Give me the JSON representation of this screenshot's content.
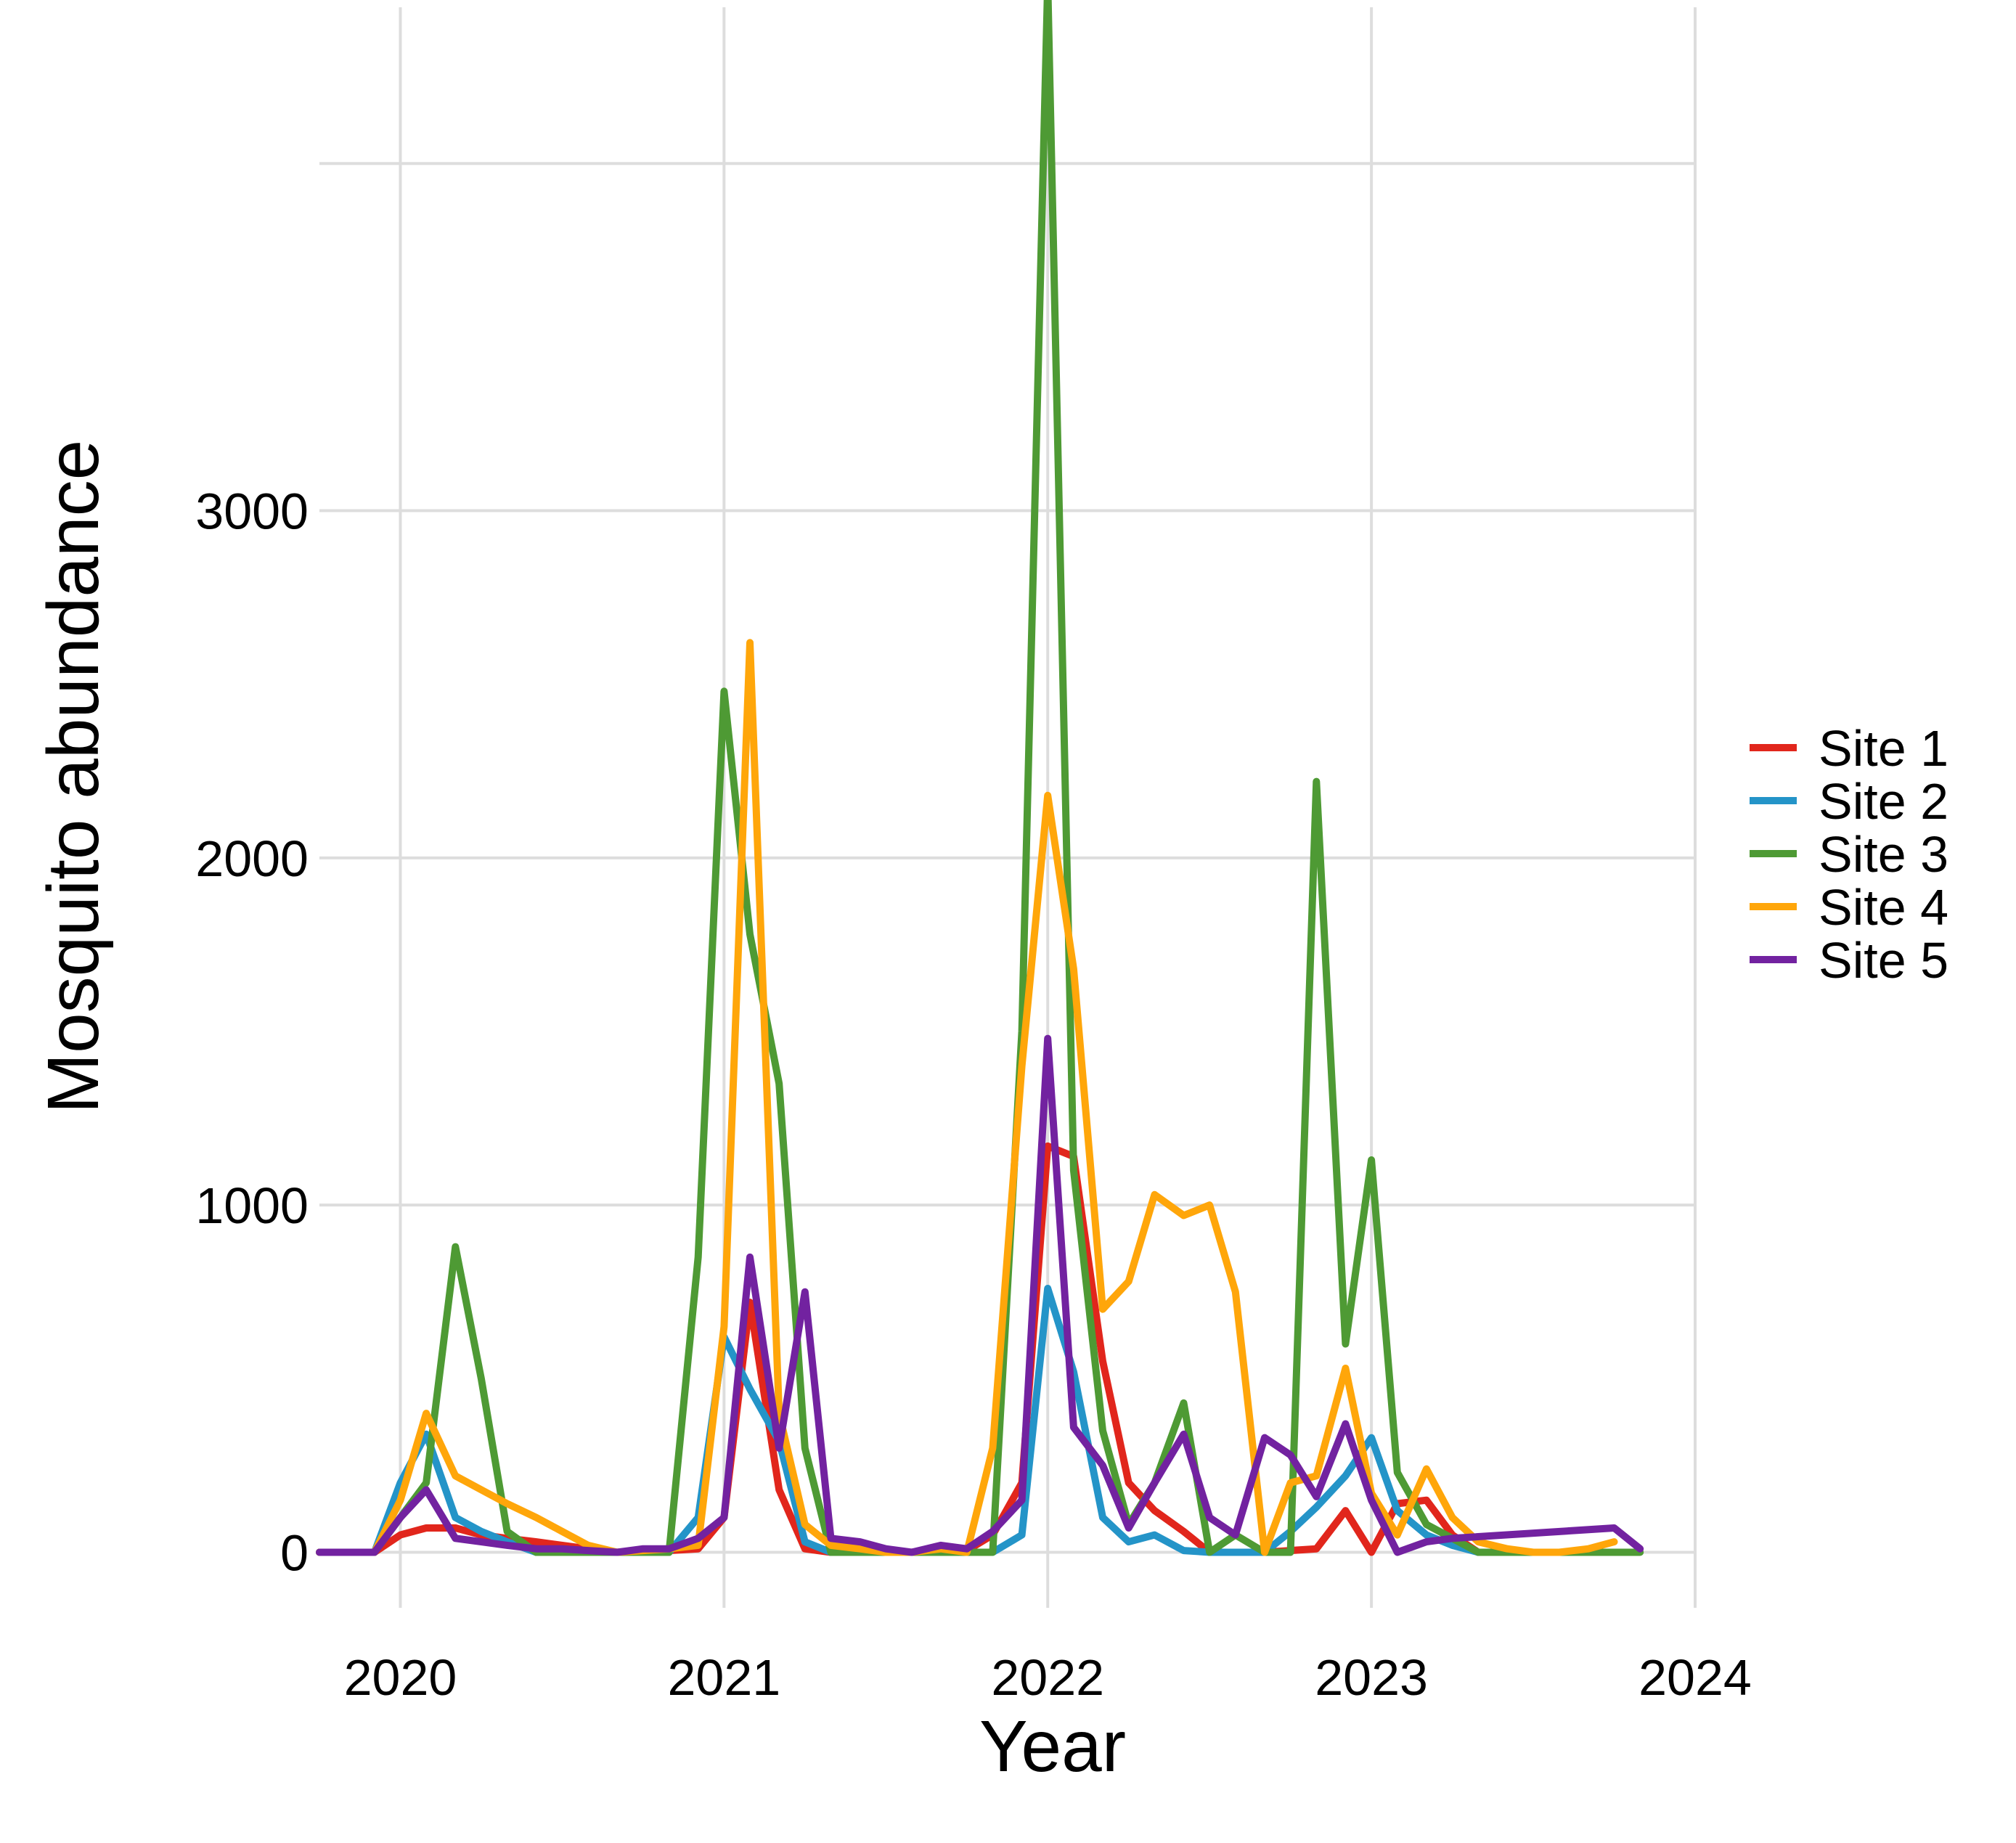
{
  "chart_data": {
    "type": "line",
    "title": "",
    "xlabel": "Year",
    "ylabel": "Mosquito abundance",
    "xlim": [
      2019.75,
      2024.0
    ],
    "ylim": [
      -160,
      4450
    ],
    "xticks": [
      2020,
      2021,
      2022,
      2023,
      2024
    ],
    "xtick_labels": [
      "2020",
      "2021",
      "2022",
      "2023",
      "2024"
    ],
    "yticks": [
      0,
      1000,
      2000,
      3000
    ],
    "ytick_labels": [
      "0",
      "1000",
      "2000",
      "3000"
    ],
    "extra_gridlines_y": [
      4000
    ],
    "grid": true,
    "legend_position": "right",
    "series": [
      {
        "name": "Site 1",
        "color": "#e1261c",
        "x": [
          2019.75,
          2019.83,
          2019.92,
          2020.0,
          2020.08,
          2020.17,
          2020.25,
          2020.33,
          2020.42,
          2020.5,
          2020.58,
          2020.67,
          2020.75,
          2020.83,
          2020.92,
          2021.0,
          2021.08,
          2021.17,
          2021.25,
          2021.33,
          2021.42,
          2021.5,
          2021.58,
          2021.67,
          2021.75,
          2021.83,
          2021.92,
          2022.0,
          2022.08,
          2022.17,
          2022.25,
          2022.33,
          2022.42,
          2022.5,
          2022.58,
          2022.67,
          2022.75,
          2022.83,
          2022.92,
          2023.0,
          2023.08,
          2023.17,
          2023.25,
          2023.33
        ],
        "y": [
          0,
          0,
          0,
          50,
          70,
          70,
          50,
          40,
          30,
          20,
          10,
          0,
          5,
          5,
          10,
          100,
          720,
          180,
          10,
          0,
          0,
          0,
          0,
          10,
          5,
          50,
          200,
          1170,
          1140,
          550,
          200,
          120,
          60,
          0,
          0,
          0,
          5,
          10,
          120,
          0,
          140,
          150,
          50,
          0
        ]
      },
      {
        "name": "Site 2",
        "color": "#2494c8",
        "x": [
          2019.75,
          2019.83,
          2019.92,
          2020.0,
          2020.08,
          2020.17,
          2020.25,
          2020.33,
          2020.42,
          2020.5,
          2020.58,
          2020.67,
          2020.75,
          2020.83,
          2020.92,
          2021.0,
          2021.08,
          2021.17,
          2021.25,
          2021.33,
          2021.42,
          2021.5,
          2021.58,
          2021.67,
          2021.75,
          2021.83,
          2021.92,
          2022.0,
          2022.08,
          2022.17,
          2022.25,
          2022.33,
          2022.42,
          2022.5,
          2022.58,
          2022.67,
          2022.75,
          2022.83,
          2022.92,
          2023.0,
          2023.08,
          2023.17,
          2023.25,
          2023.33
        ],
        "y": [
          0,
          0,
          0,
          200,
          340,
          100,
          60,
          30,
          0,
          0,
          0,
          0,
          0,
          0,
          100,
          620,
          470,
          320,
          30,
          0,
          0,
          0,
          0,
          0,
          0,
          0,
          50,
          760,
          520,
          100,
          30,
          50,
          5,
          0,
          0,
          0,
          60,
          130,
          220,
          330,
          120,
          50,
          20,
          0
        ]
      },
      {
        "name": "Site 3",
        "color": "#4e9a34",
        "x": [
          2019.75,
          2019.83,
          2019.92,
          2020.0,
          2020.08,
          2020.17,
          2020.25,
          2020.33,
          2020.42,
          2020.5,
          2020.58,
          2020.67,
          2020.75,
          2020.83,
          2020.92,
          2021.0,
          2021.08,
          2021.17,
          2021.25,
          2021.33,
          2021.42,
          2021.5,
          2021.58,
          2021.67,
          2021.75,
          2021.83,
          2021.92,
          2022.0,
          2022.08,
          2022.17,
          2022.25,
          2022.33,
          2022.42,
          2022.5,
          2022.58,
          2022.67,
          2022.75,
          2022.83,
          2022.92,
          2023.0,
          2023.08,
          2023.17,
          2023.25,
          2023.33,
          2023.42,
          2023.5,
          2023.58,
          2023.67,
          2023.75,
          2023.83
        ],
        "y": [
          0,
          0,
          0,
          100,
          200,
          880,
          500,
          60,
          0,
          0,
          0,
          0,
          0,
          0,
          850,
          2480,
          1780,
          1350,
          300,
          0,
          0,
          0,
          0,
          0,
          0,
          0,
          1500,
          4520,
          1100,
          350,
          80,
          200,
          430,
          0,
          50,
          0,
          0,
          2220,
          600,
          1130,
          230,
          80,
          40,
          0,
          0,
          0,
          0,
          0,
          0,
          0
        ]
      },
      {
        "name": "Site 4",
        "color": "#ffa60a",
        "x": [
          2019.75,
          2019.83,
          2019.92,
          2020.0,
          2020.08,
          2020.17,
          2020.25,
          2020.33,
          2020.42,
          2020.5,
          2020.58,
          2020.67,
          2020.75,
          2020.83,
          2020.92,
          2021.0,
          2021.08,
          2021.17,
          2021.25,
          2021.33,
          2021.42,
          2021.5,
          2021.58,
          2021.67,
          2021.75,
          2021.83,
          2021.92,
          2022.0,
          2022.08,
          2022.17,
          2022.25,
          2022.33,
          2022.42,
          2022.5,
          2022.58,
          2022.67,
          2022.75,
          2022.83,
          2022.92,
          2023.0,
          2023.08,
          2023.17,
          2023.25,
          2023.33,
          2023.42,
          2023.5,
          2023.58,
          2023.67,
          2023.75
        ],
        "y": [
          0,
          0,
          0,
          150,
          400,
          220,
          180,
          140,
          100,
          60,
          20,
          0,
          5,
          10,
          20,
          650,
          2620,
          400,
          80,
          20,
          10,
          0,
          0,
          10,
          0,
          300,
          1400,
          2180,
          1680,
          700,
          780,
          1030,
          970,
          1000,
          750,
          0,
          200,
          220,
          530,
          170,
          50,
          240,
          100,
          30,
          10,
          0,
          0,
          10,
          30
        ]
      },
      {
        "name": "Site 5",
        "color": "#7222a0",
        "x": [
          2019.75,
          2019.83,
          2019.92,
          2020.0,
          2020.08,
          2020.17,
          2020.25,
          2020.33,
          2020.42,
          2020.5,
          2020.58,
          2020.67,
          2020.75,
          2020.83,
          2020.92,
          2021.0,
          2021.08,
          2021.17,
          2021.25,
          2021.33,
          2021.42,
          2021.5,
          2021.58,
          2021.67,
          2021.75,
          2021.83,
          2021.92,
          2022.0,
          2022.08,
          2022.17,
          2022.25,
          2022.33,
          2022.42,
          2022.5,
          2022.58,
          2022.67,
          2022.75,
          2022.83,
          2022.92,
          2023.0,
          2023.08,
          2023.17,
          2023.25,
          2023.75,
          2023.83
        ],
        "y": [
          0,
          0,
          0,
          100,
          180,
          40,
          30,
          20,
          10,
          10,
          5,
          0,
          10,
          10,
          40,
          100,
          850,
          300,
          750,
          40,
          30,
          10,
          0,
          20,
          10,
          60,
          150,
          1480,
          360,
          250,
          70,
          200,
          340,
          100,
          50,
          330,
          280,
          160,
          370,
          150,
          0,
          30,
          40,
          70,
          10
        ]
      }
    ]
  }
}
